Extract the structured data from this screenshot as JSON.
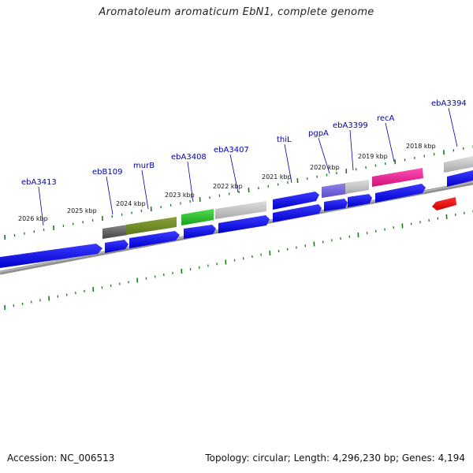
{
  "title": "Aromatoleum aromaticum EbN1, complete genome",
  "footer": {
    "accession": "Accession: NC_006513",
    "summary": "Topology: circular; Length: 4,296,230 bp; Genes: 4,194"
  },
  "ruler_labels": [
    "2026 kbp",
    "2025 kbp",
    "2024 kbp",
    "2023 kbp",
    "2022 kbp",
    "2021 kbp",
    "2020 kbp",
    "2019 kbp",
    "2018 kbp"
  ],
  "gene_labels": [
    "ebA3413",
    "ebB109",
    "murB",
    "ebA3408",
    "ebA3407",
    "thiL",
    "pgpA",
    "ebA3399",
    "recA",
    "ebA3394"
  ],
  "colors": {
    "backbone": "#8c8c8c",
    "cds": "#0000e6",
    "label": "#0000aa",
    "ticks": "#1a7a1a",
    "reverse_feature": "#ee0000"
  }
}
